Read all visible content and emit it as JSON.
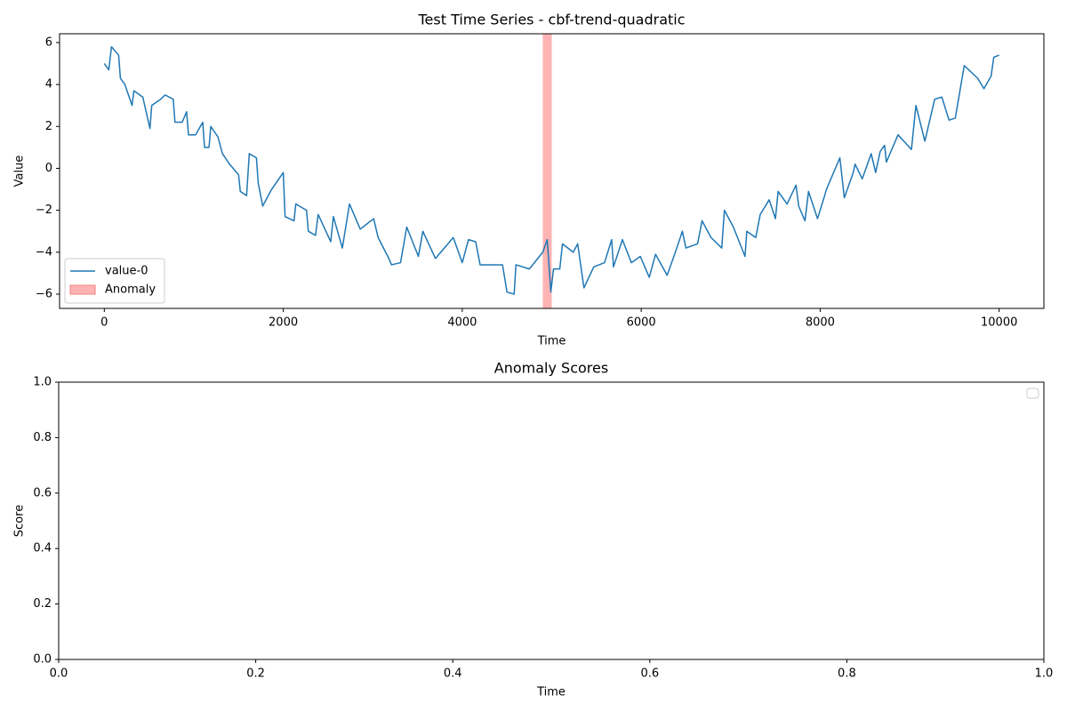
{
  "chart_data": [
    {
      "type": "line",
      "title": "Test Time Series - cbf-trend-quadratic",
      "xlabel": "Time",
      "ylabel": "Value",
      "x": [
        0,
        50,
        80,
        160,
        180,
        230,
        310,
        330,
        430,
        510,
        530,
        630,
        680,
        770,
        790,
        870,
        920,
        940,
        1020,
        1100,
        1120,
        1170,
        1190,
        1270,
        1320,
        1400,
        1500,
        1520,
        1590,
        1620,
        1700,
        1720,
        1770,
        1870,
        2000,
        2020,
        2120,
        2140,
        2260,
        2280,
        2360,
        2390,
        2530,
        2560,
        2660,
        2740,
        2860,
        3010,
        3060,
        3180,
        3210,
        3310,
        3380,
        3510,
        3560,
        3700,
        3900,
        4000,
        4070,
        4150,
        4200,
        4350,
        4450,
        4500,
        4580,
        4600,
        4750,
        4900,
        4950,
        4990,
        5020,
        5090,
        5120,
        5240,
        5290,
        5360,
        5470,
        5590,
        5670,
        5690,
        5790,
        5890,
        5990,
        6090,
        6160,
        6290,
        6390,
        6460,
        6500,
        6630,
        6680,
        6780,
        6900,
        6930,
        7030,
        7160,
        7180,
        7280,
        7330,
        7430,
        7500,
        7530,
        7630,
        7730,
        7760,
        7830,
        7870,
        7970,
        8050,
        8070,
        8220,
        8270,
        8370,
        8390,
        8470,
        8570,
        8620,
        8670,
        8720,
        8740,
        8870,
        9020,
        9070,
        9170,
        9280,
        9360,
        9440,
        9510,
        9610,
        9760,
        9830,
        9910,
        9940,
        10000
      ],
      "series": [
        {
          "name": "value-0",
          "color": "#1f77b4",
          "values": [
            5.0,
            4.7,
            5.8,
            5.4,
            4.3,
            4.0,
            3.0,
            3.7,
            3.4,
            1.9,
            3.0,
            3.3,
            3.5,
            3.3,
            2.2,
            2.2,
            2.7,
            1.6,
            1.6,
            2.2,
            1.0,
            1.0,
            2.0,
            1.5,
            0.7,
            0.2,
            -0.3,
            -1.1,
            -1.3,
            0.7,
            0.5,
            -0.7,
            -1.8,
            -1.0,
            -0.2,
            -2.3,
            -2.5,
            -1.7,
            -2.0,
            -3.0,
            -3.2,
            -2.2,
            -3.5,
            -2.3,
            -3.8,
            -1.7,
            -2.9,
            -2.4,
            -3.3,
            -4.3,
            -4.6,
            -4.5,
            -2.8,
            -4.2,
            -3.0,
            -4.3,
            -3.3,
            -4.5,
            -3.4,
            -3.5,
            -4.6,
            -4.6,
            -4.6,
            -5.9,
            -6.0,
            -4.6,
            -4.8,
            -4.0,
            -3.4,
            -5.9,
            -4.8,
            -4.8,
            -3.6,
            -4.0,
            -3.6,
            -5.7,
            -4.7,
            -4.5,
            -3.4,
            -4.7,
            -3.4,
            -4.5,
            -4.2,
            -5.2,
            -4.1,
            -5.1,
            -3.9,
            -3.0,
            -3.8,
            -3.6,
            -2.5,
            -3.3,
            -3.8,
            -2.0,
            -2.8,
            -4.2,
            -3.0,
            -3.3,
            -2.2,
            -1.5,
            -2.4,
            -1.1,
            -1.7,
            -0.8,
            -1.8,
            -2.5,
            -1.1,
            -2.4,
            -1.3,
            -1.0,
            0.5,
            -1.4,
            -0.2,
            0.2,
            -0.5,
            0.7,
            -0.2,
            0.8,
            1.1,
            0.3,
            1.6,
            0.9,
            3.0,
            1.3,
            3.3,
            3.4,
            2.3,
            2.4,
            4.9,
            4.3,
            3.8,
            4.4,
            5.3,
            5.4
          ]
        }
      ],
      "spans": [
        {
          "name": "Anomaly",
          "color": "#ffb3b3",
          "x": [
            4900,
            5000
          ]
        }
      ],
      "xlim": [
        -500,
        10500
      ],
      "ylim": [
        -6.68,
        6.42
      ],
      "xticks": [
        0,
        2000,
        4000,
        6000,
        8000,
        10000
      ],
      "yticks": [
        {
          "value": -6,
          "label": "−6"
        },
        {
          "value": -4,
          "label": "−4"
        },
        {
          "value": -2,
          "label": "−2"
        },
        0,
        2,
        4,
        6
      ],
      "legend": "lower left"
    },
    {
      "type": "line",
      "title": "Anomaly Scores",
      "xlabel": "Time",
      "ylabel": "Score",
      "series": [],
      "xlim": [
        0,
        1
      ],
      "ylim": [
        0,
        1
      ],
      "xticks": [
        {
          "value": 0,
          "label": "0.0"
        },
        {
          "value": 0.2,
          "label": "0.2"
        },
        {
          "value": 0.4,
          "label": "0.4"
        },
        {
          "value": 0.6,
          "label": "0.6"
        },
        {
          "value": 0.8,
          "label": "0.8"
        },
        {
          "value": 1,
          "label": "1.0"
        }
      ],
      "yticks": [
        {
          "value": 0,
          "label": "0.0"
        },
        {
          "value": 0.2,
          "label": "0.2"
        },
        {
          "value": 0.4,
          "label": "0.4"
        },
        {
          "value": 0.6,
          "label": "0.6"
        },
        {
          "value": 0.8,
          "label": "0.8"
        },
        {
          "value": 1,
          "label": "1.0"
        }
      ],
      "legend": "upper right"
    }
  ]
}
